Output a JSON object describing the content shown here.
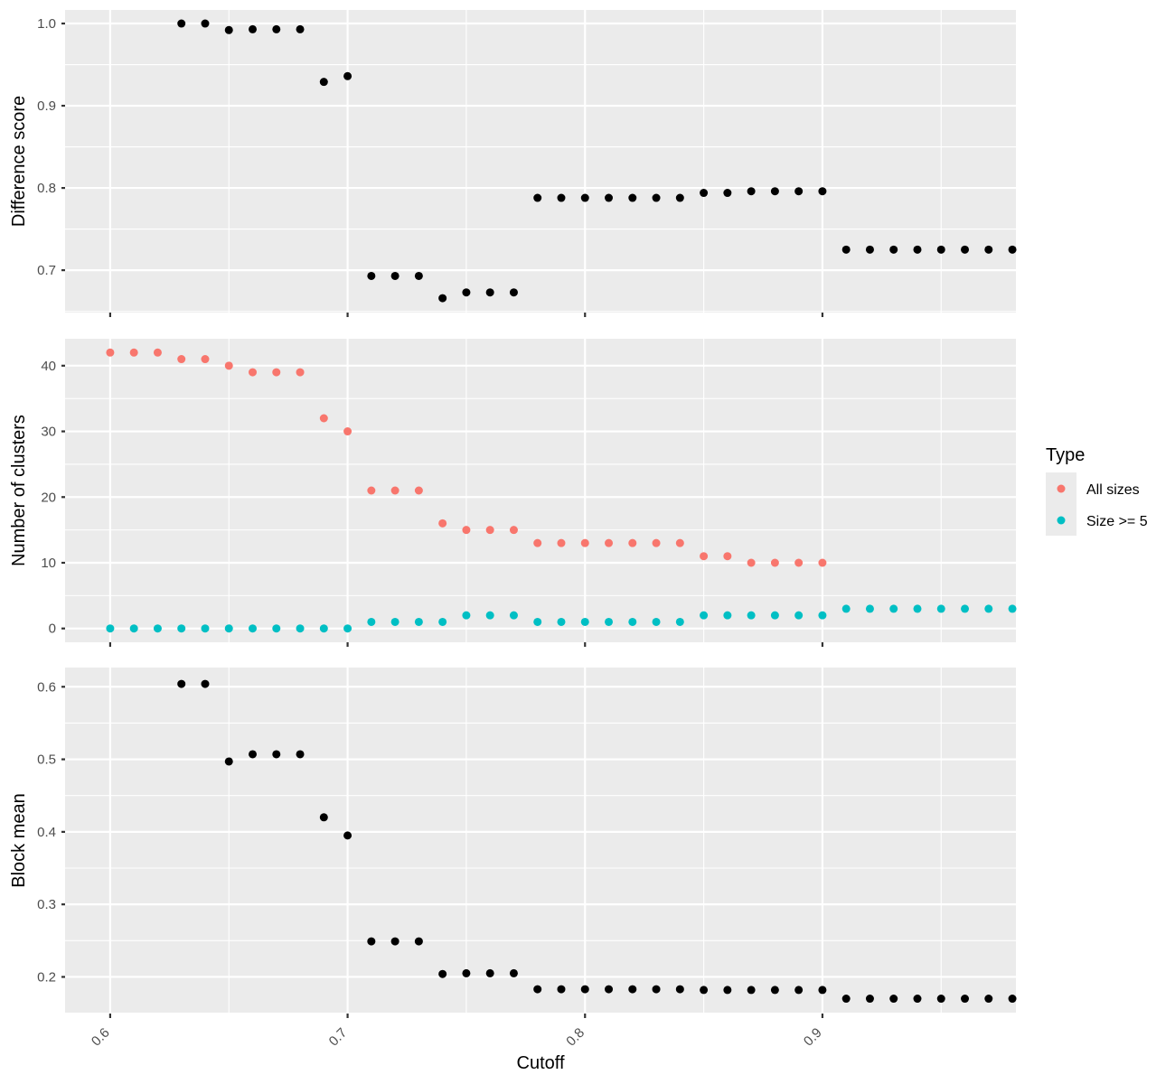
{
  "chart_data": {
    "type": "scatter",
    "xlabel": "Cutoff",
    "x_ticks": [
      "0.6",
      "0.7",
      "0.8",
      "0.9"
    ],
    "x_tick_values": [
      0.6,
      0.7,
      0.8,
      0.9
    ],
    "xlim": [
      0.581,
      0.9815
    ],
    "grid": "on",
    "legend": {
      "title": "Type",
      "placement": "right",
      "entries": [
        {
          "label": "All sizes",
          "color": "#F8766D"
        },
        {
          "label": "Size >= 5",
          "color": "#00BFC4"
        }
      ]
    },
    "colors": {
      "panel_background": "#EBEBEB",
      "grid": "#FFFFFF",
      "point_default": "#000000"
    },
    "panels": [
      {
        "ylabel": "Difference score",
        "ylim": [
          0.6485,
          1.0165
        ],
        "y_ticks": [
          "0.7",
          "0.8",
          "0.9",
          "1.0"
        ],
        "y_tick_values": [
          0.7,
          0.8,
          0.9,
          1.0
        ],
        "series": [
          {
            "color": "#000000",
            "x": [
              0.63,
              0.64,
              0.65,
              0.66,
              0.67,
              0.68,
              0.69,
              0.7,
              0.71,
              0.72,
              0.73,
              0.74,
              0.75,
              0.76,
              0.77,
              0.78,
              0.79,
              0.8,
              0.81,
              0.82,
              0.83,
              0.84,
              0.85,
              0.86,
              0.87,
              0.88,
              0.89,
              0.9,
              0.91,
              0.92,
              0.93,
              0.94,
              0.95,
              0.96,
              0.97,
              0.98
            ],
            "y": [
              1.0,
              1.0,
              0.992,
              0.993,
              0.993,
              0.993,
              0.929,
              0.936,
              0.693,
              0.693,
              0.693,
              0.666,
              0.673,
              0.673,
              0.673,
              0.788,
              0.788,
              0.788,
              0.788,
              0.788,
              0.788,
              0.788,
              0.794,
              0.794,
              0.796,
              0.796,
              0.796,
              0.796,
              0.725,
              0.725,
              0.725,
              0.725,
              0.725,
              0.725,
              0.725,
              0.725
            ]
          }
        ]
      },
      {
        "ylabel": "Number of clusters",
        "ylim": [
          -2.1,
          44.1
        ],
        "y_ticks": [
          "0",
          "10",
          "20",
          "30",
          "40"
        ],
        "y_tick_values": [
          0,
          10,
          20,
          30,
          40
        ],
        "series": [
          {
            "name": "All sizes",
            "color": "#F8766D",
            "x": [
              0.6,
              0.61,
              0.62,
              0.63,
              0.64,
              0.65,
              0.66,
              0.67,
              0.68,
              0.69,
              0.7,
              0.71,
              0.72,
              0.73,
              0.74,
              0.75,
              0.76,
              0.77,
              0.78,
              0.79,
              0.8,
              0.81,
              0.82,
              0.83,
              0.84,
              0.85,
              0.86,
              0.87,
              0.88,
              0.89,
              0.9
            ],
            "y": [
              42,
              42,
              42,
              41,
              41,
              40,
              39,
              39,
              39,
              32,
              30,
              21,
              21,
              21,
              16,
              15,
              15,
              15,
              13,
              13,
              13,
              13,
              13,
              13,
              13,
              11,
              11,
              10,
              10,
              10,
              10
            ]
          },
          {
            "name": "Size >= 5",
            "color": "#00BFC4",
            "x": [
              0.6,
              0.61,
              0.62,
              0.63,
              0.64,
              0.65,
              0.66,
              0.67,
              0.68,
              0.69,
              0.7,
              0.71,
              0.72,
              0.73,
              0.74,
              0.75,
              0.76,
              0.77,
              0.78,
              0.79,
              0.8,
              0.81,
              0.82,
              0.83,
              0.84,
              0.85,
              0.86,
              0.87,
              0.88,
              0.89,
              0.9,
              0.91,
              0.92,
              0.93,
              0.94,
              0.95,
              0.96,
              0.97,
              0.98
            ],
            "y": [
              0,
              0,
              0,
              0,
              0,
              0,
              0,
              0,
              0,
              0,
              0,
              1,
              1,
              1,
              1,
              2,
              2,
              2,
              1,
              1,
              1,
              1,
              1,
              1,
              1,
              2,
              2,
              2,
              2,
              2,
              2,
              3,
              3,
              3,
              3,
              3,
              3,
              3,
              3
            ]
          }
        ]
      },
      {
        "ylabel": "Block mean",
        "ylim": [
          0.1495,
          0.6265
        ],
        "y_ticks": [
          "0.2",
          "0.3",
          "0.4",
          "0.5",
          "0.6"
        ],
        "y_tick_values": [
          0.2,
          0.3,
          0.4,
          0.5,
          0.6
        ],
        "series": [
          {
            "color": "#000000",
            "x": [
              0.63,
              0.64,
              0.65,
              0.66,
              0.67,
              0.68,
              0.69,
              0.7,
              0.71,
              0.72,
              0.73,
              0.74,
              0.75,
              0.76,
              0.77,
              0.78,
              0.79,
              0.8,
              0.81,
              0.82,
              0.83,
              0.84,
              0.85,
              0.86,
              0.87,
              0.88,
              0.89,
              0.9,
              0.91,
              0.92,
              0.93,
              0.94,
              0.95,
              0.96,
              0.97,
              0.98
            ],
            "y": [
              0.604,
              0.604,
              0.497,
              0.507,
              0.507,
              0.507,
              0.42,
              0.395,
              0.249,
              0.249,
              0.249,
              0.204,
              0.205,
              0.205,
              0.205,
              0.183,
              0.183,
              0.183,
              0.183,
              0.183,
              0.183,
              0.183,
              0.182,
              0.182,
              0.182,
              0.182,
              0.182,
              0.182,
              0.17,
              0.17,
              0.17,
              0.17,
              0.17,
              0.17,
              0.17,
              0.17
            ]
          }
        ]
      }
    ]
  }
}
